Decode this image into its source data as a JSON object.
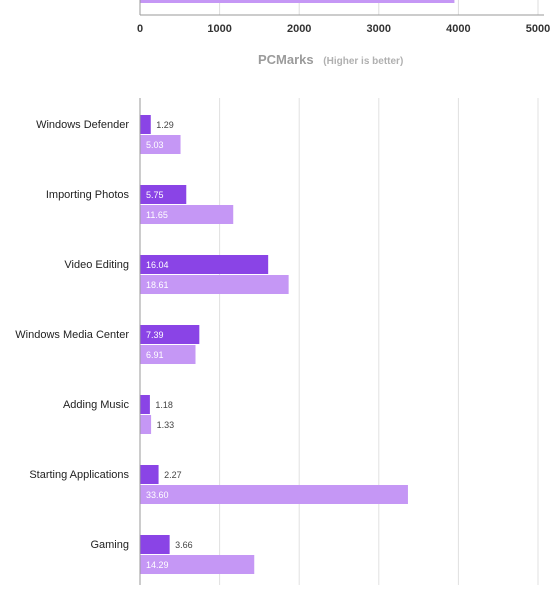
{
  "chart_data": [
    {
      "type": "bar",
      "orientation": "horizontal",
      "xlabel": "PCMarks",
      "xlabel_note": "(Higher is better)",
      "xlim": [
        0,
        5000
      ],
      "xticks": [
        "0",
        "1000",
        "2000",
        "3000",
        "4000",
        "5000"
      ],
      "grid": true,
      "series": [
        {
          "values": [
            3950
          ],
          "color": "#c597f5"
        }
      ]
    },
    {
      "type": "bar",
      "orientation": "horizontal",
      "xlim": [
        0,
        50
      ],
      "grid": true,
      "categories": [
        "Windows Defender",
        "Importing Photos",
        "Video Editing",
        "Windows Media Center",
        "Adding Music",
        "Starting Applications",
        "Gaming"
      ],
      "series": [
        {
          "color": "#8a44e6",
          "values": [
            1.29,
            5.75,
            16.04,
            7.39,
            1.18,
            2.27,
            3.66
          ],
          "labels": [
            "1.29",
            "5.75",
            "16.04",
            "7.39",
            "1.18",
            "2.27",
            "3.66"
          ]
        },
        {
          "color": "#c597f5",
          "values": [
            5.03,
            11.65,
            18.61,
            6.91,
            1.33,
            33.6,
            14.29
          ],
          "labels": [
            "5.03",
            "11.65",
            "18.61",
            "6.91",
            "1.33",
            "33.60",
            "14.29"
          ]
        }
      ]
    }
  ]
}
